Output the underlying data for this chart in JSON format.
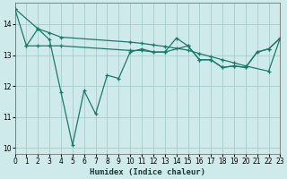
{
  "xlabel": "Humidex (Indice chaleur)",
  "background_color": "#ceeaea",
  "grid_color": "#aacccc",
  "line_color": "#1a7a6a",
  "s1_x": [
    0,
    1,
    2,
    3,
    4,
    5,
    6,
    7,
    8,
    9,
    10,
    11,
    12,
    13,
    14,
    15,
    16,
    17,
    18,
    19,
    20,
    21,
    22,
    23
  ],
  "s1_y": [
    14.5,
    13.3,
    13.85,
    13.5,
    11.8,
    10.1,
    11.85,
    11.1,
    12.35,
    12.25,
    13.1,
    13.2,
    13.1,
    13.1,
    13.55,
    13.3,
    12.85,
    12.85,
    12.6,
    12.65,
    12.6,
    13.1,
    13.2,
    13.55
  ],
  "s2_x": [
    0,
    2,
    3,
    4,
    10,
    11,
    12,
    13,
    14,
    15,
    16,
    17,
    18,
    19,
    20,
    22,
    23
  ],
  "s2_y": [
    14.5,
    13.85,
    13.72,
    13.58,
    13.42,
    13.38,
    13.33,
    13.28,
    13.22,
    13.16,
    13.05,
    12.95,
    12.85,
    12.75,
    12.65,
    12.48,
    13.55
  ],
  "s3_x": [
    1,
    2,
    3,
    4,
    10,
    11,
    12,
    13,
    15,
    16,
    17,
    18,
    19,
    20,
    21,
    22,
    23
  ],
  "s3_y": [
    13.3,
    13.3,
    13.3,
    13.3,
    13.15,
    13.15,
    13.1,
    13.1,
    13.3,
    12.85,
    12.85,
    12.6,
    12.65,
    12.6,
    13.1,
    13.2,
    13.55
  ],
  "xlim": [
    0,
    23
  ],
  "ylim": [
    9.8,
    14.7
  ],
  "yticks": [
    10,
    11,
    12,
    13,
    14
  ],
  "xticks": [
    0,
    1,
    2,
    3,
    4,
    5,
    6,
    7,
    8,
    9,
    10,
    11,
    12,
    13,
    14,
    15,
    16,
    17,
    18,
    19,
    20,
    21,
    22,
    23
  ]
}
